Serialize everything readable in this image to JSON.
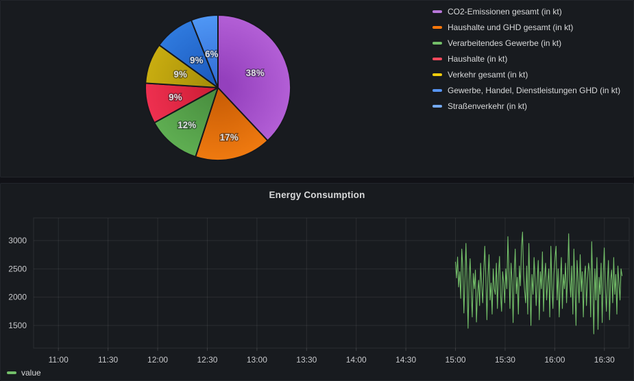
{
  "page": {
    "background": "#111217",
    "panel_background": "#181b1f",
    "panel_border": "#22252b",
    "grid_color": "rgba(255,255,255,0.08)",
    "axis_text_color": "#c8c9cc"
  },
  "pie_panel": {
    "legend_items": [
      {
        "label": "CO2-Emissionen gesamt (in kt)",
        "color": "#b877d9"
      },
      {
        "label": "Haushalte und GHD gesamt (in kt)",
        "color": "#ff780a"
      },
      {
        "label": "Verarbeitendes Gewerbe (in kt)",
        "color": "#73bf69"
      },
      {
        "label": "Haushalte (in kt)",
        "color": "#f2495c"
      },
      {
        "label": "Verkehr gesamt (in kt)",
        "color": "#f2cc0c"
      },
      {
        "label": "Gewerbe, Handel, Dienstleistungen GHD (in kt)",
        "color": "#5794f2"
      },
      {
        "label": "Straßenverkehr (in kt)",
        "color": "#75aaf2"
      }
    ]
  },
  "timeseries_panel": {
    "title": "Energy Consumption",
    "legend_label": "value",
    "legend_color": "#73bf69"
  },
  "chart_data": [
    {
      "type": "pie",
      "title": "",
      "labels": [
        "CO2-Emissionen gesamt (in kt)",
        "Haushalte und GHD gesamt (in kt)",
        "Verarbeitendes Gewerbe (in kt)",
        "Haushalte (in kt)",
        "Verkehr gesamt (in kt)",
        "Gewerbe, Handel, Dienstleistungen GHD (in kt)",
        "Straßenverkehr (in kt)"
      ],
      "values": [
        38,
        17,
        12,
        9,
        9,
        9,
        6
      ],
      "value_labels": [
        "38%",
        "17%",
        "12%",
        "9%",
        "9%",
        "9%",
        "6%"
      ],
      "unit": "percent",
      "start_angle_deg": 0,
      "direction": "clockwise",
      "slice_colors": [
        {
          "center": "#9440bd",
          "rim": "#b35fd6"
        },
        {
          "center": "#cc5f06",
          "rim": "#ef7a10"
        },
        {
          "center": "#4a9040",
          "rim": "#5fae52"
        },
        {
          "center": "#d01f38",
          "rim": "#ee3050"
        },
        {
          "center": "#a8900a",
          "rim": "#c9ad10"
        },
        {
          "center": "#1d5cc0",
          "rim": "#2f7ade"
        },
        {
          "center": "#3570d8",
          "rim": "#4f97f5"
        }
      ],
      "label_color": "#dcdde0",
      "label_radius_factors": [
        0.55,
        0.7,
        0.67,
        0.6,
        0.55,
        0.48,
        0.47
      ],
      "legend_position": "right"
    },
    {
      "type": "line",
      "title": "Energy Consumption",
      "xlabel": "",
      "ylabel": "",
      "x_range": [
        "10:45",
        "16:45"
      ],
      "x_ticks": [
        "11:00",
        "11:30",
        "12:00",
        "12:30",
        "13:00",
        "13:30",
        "14:00",
        "14:30",
        "15:00",
        "15:30",
        "16:00",
        "16:30"
      ],
      "y_ticks": [
        1500,
        2000,
        2500,
        3000
      ],
      "ylim": [
        1100,
        3400
      ],
      "grid": true,
      "legend_position": "bottom-left",
      "series": [
        {
          "name": "value",
          "color": "#73bf69",
          "start_time": "15:00",
          "interval_seconds": 38,
          "values": [
            2620,
            2340,
            2710,
            2180,
            2450,
            1980,
            2850,
            2520,
            1720,
            2280,
            2950,
            2250,
            1450,
            2300,
            2680,
            2100,
            1650,
            2420,
            2150,
            2480,
            1560,
            2050,
            2300,
            1850,
            2600,
            2200,
            1900,
            2450,
            2900,
            2330,
            1600,
            2350,
            2750,
            1950,
            2250,
            1700,
            2500,
            2150,
            2050,
            2600,
            1800,
            2380,
            2720,
            2040,
            1750,
            2450,
            2250,
            1900,
            2500,
            2150,
            3070,
            2450,
            1800,
            2600,
            2280,
            1550,
            2420,
            2850,
            2060,
            2350,
            1700,
            2550,
            2200,
            2900,
            3150,
            2400,
            2100,
            1900,
            2550,
            1700,
            2950,
            2200,
            1500,
            2400,
            2050,
            2700,
            2320,
            1850,
            2300,
            2650,
            1600,
            2450,
            2150,
            2800,
            1750,
            2350,
            2600,
            1950,
            2250,
            2500,
            1650,
            2900,
            2200,
            1800,
            2400,
            2700,
            2900,
            1950,
            2500,
            1650,
            2250,
            2700,
            1800,
            2400,
            2150,
            2600,
            1900,
            2350,
            3120,
            2300,
            2000,
            2550,
            1700,
            2850,
            2200,
            1500,
            2650,
            2300,
            1900,
            2750,
            2100,
            2450,
            1650,
            2380,
            2550,
            1850,
            2300,
            2600,
            2450,
            1650,
            2980,
            2250,
            1350,
            2500,
            1950,
            2700,
            1430,
            2350,
            2050,
            2600,
            1550,
            2400,
            2870,
            2150,
            1750,
            2250,
            2650,
            1600,
            2300,
            2480,
            1900,
            2700,
            2050,
            2400,
            1700,
            2550,
            2250,
            1950,
            2500,
            2380
          ]
        }
      ]
    }
  ]
}
